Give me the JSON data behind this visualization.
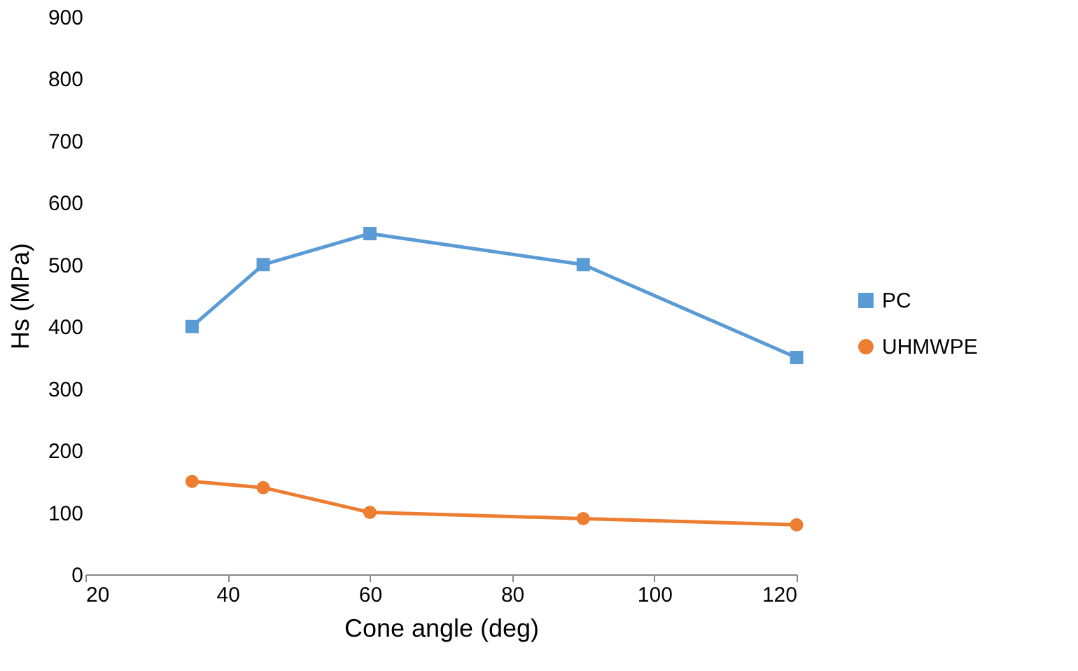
{
  "chart_data": {
    "type": "line",
    "xlabel": "Cone angle (deg)",
    "ylabel": "Hs (MPa)",
    "x": [
      35,
      45,
      60,
      90,
      120
    ],
    "series": [
      {
        "name": "PC",
        "color": "#5b9bd5",
        "marker": "square",
        "values": [
          400,
          500,
          550,
          500,
          350
        ]
      },
      {
        "name": "UHMWPE",
        "color": "#ed7d31",
        "marker": "circle",
        "values": [
          150,
          140,
          100,
          90,
          80
        ]
      }
    ],
    "xlim": [
      20,
      120
    ],
    "xticks": [
      20,
      40,
      60,
      80,
      100,
      120
    ],
    "ylim": [
      0,
      900
    ],
    "yticks": [
      0,
      100,
      200,
      300,
      400,
      500,
      600,
      700,
      800,
      900
    ],
    "grid": false,
    "legend": "right",
    "line_style": "solid"
  }
}
